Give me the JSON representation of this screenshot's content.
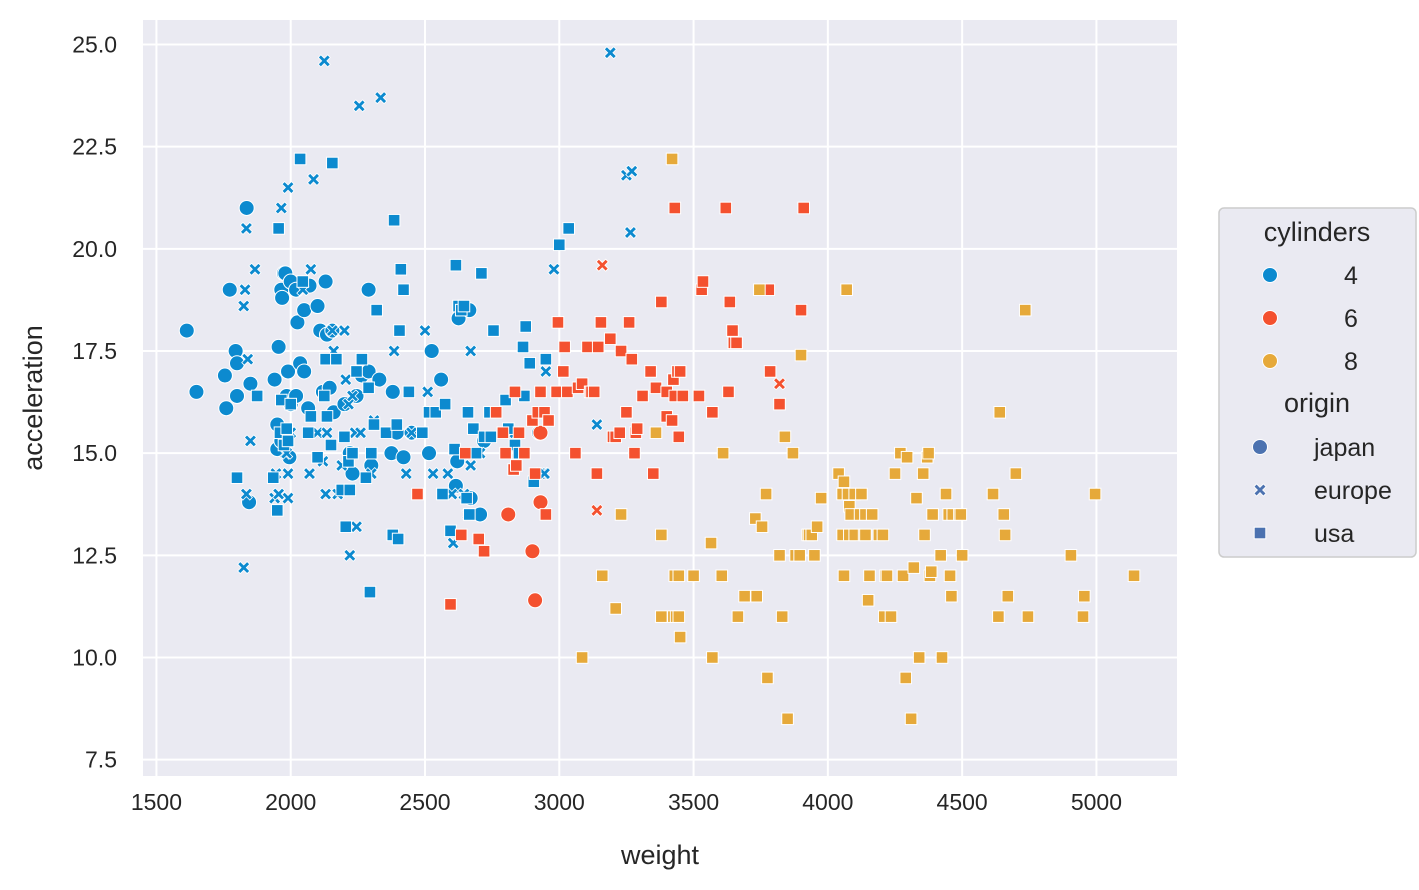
{
  "chart_data": {
    "type": "scatter",
    "xlabel": "weight",
    "ylabel": "acceleration",
    "xlim": [
      1450,
      5300
    ],
    "ylim": [
      7.1,
      25.6
    ],
    "xticks": [
      1500,
      2000,
      2500,
      3000,
      3500,
      4000,
      4500,
      5000
    ],
    "yticks": [
      7.5,
      10.0,
      12.5,
      15.0,
      17.5,
      20.0,
      22.5,
      25.0
    ],
    "xtick_labels": [
      "1500",
      "2000",
      "2500",
      "3000",
      "3500",
      "4000",
      "4500",
      "5000"
    ],
    "ytick_labels": [
      "7.5",
      "10.0",
      "12.5",
      "15.0",
      "17.5",
      "20.0",
      "22.5",
      "25.0"
    ],
    "grid": true,
    "background": "#EAEAF2",
    "legend_placement": "right",
    "color_legend": {
      "title": "cylinders",
      "entries": [
        {
          "label": "4",
          "color": "#0C8ACF"
        },
        {
          "label": "6",
          "color": "#F4512F"
        },
        {
          "label": "8",
          "color": "#E6A93A"
        }
      ]
    },
    "marker_legend": {
      "title": "origin",
      "color": "#4C72B0",
      "entries": [
        {
          "label": "japan",
          "marker": "circle"
        },
        {
          "label": "europe",
          "marker": "x"
        },
        {
          "label": "usa",
          "marker": "square"
        }
      ]
    },
    "series": [
      {
        "cylinders": "4",
        "origin": "japan",
        "marker": "circle",
        "color": "#0C8ACF",
        "x": [
          1613,
          1649,
          1755,
          1760,
          1773,
          1795,
          1800,
          1800,
          1836,
          1845,
          1850,
          1940,
          1950,
          1950,
          1955,
          1965,
          1965,
          1968,
          1975,
          1980,
          1985,
          1990,
          1995,
          2000,
          2000,
          2020,
          2020,
          2025,
          2035,
          2050,
          2050,
          2065,
          2070,
          2100,
          2110,
          2120,
          2130,
          2135,
          2145,
          2155,
          2160,
          2200,
          2220,
          2230,
          2245,
          2265,
          2290,
          2290,
          2300,
          2330,
          2375,
          2380,
          2395,
          2420,
          2450,
          2515,
          2525,
          2560,
          2615,
          2620,
          2625,
          2665,
          2670,
          2705,
          2720,
          2925
        ],
        "y": [
          18.0,
          16.5,
          16.9,
          16.1,
          19.0,
          17.5,
          17.2,
          16.4,
          21.0,
          13.8,
          16.7,
          16.8,
          15.7,
          15.1,
          17.6,
          19.0,
          15.3,
          18.8,
          19.4,
          19.4,
          16.4,
          17.0,
          14.9,
          16.2,
          19.2,
          19.0,
          16.4,
          18.2,
          17.2,
          18.5,
          17.0,
          16.1,
          19.1,
          18.6,
          18.0,
          16.5,
          19.2,
          17.9,
          16.6,
          18.0,
          16.0,
          16.2,
          15.0,
          14.5,
          16.4,
          16.9,
          19.0,
          17.0,
          14.7,
          16.8,
          15.0,
          16.5,
          15.5,
          14.9,
          15.5,
          15.0,
          17.5,
          16.8,
          14.2,
          14.8,
          18.3,
          18.5,
          13.9,
          13.5,
          15.3,
          15.5
        ]
      },
      {
        "cylinders": "4",
        "origin": "europe",
        "marker": "x",
        "color": "#0C8ACF",
        "x": [
          1825,
          1825,
          1830,
          1835,
          1835,
          1840,
          1850,
          1867,
          1940,
          1945,
          1955,
          1955,
          1965,
          1980,
          1985,
          1990,
          1990,
          1990,
          1995,
          2000,
          2045,
          2070,
          2075,
          2085,
          2100,
          2120,
          2125,
          2130,
          2135,
          2155,
          2160,
          2175,
          2190,
          2200,
          2205,
          2215,
          2220,
          2230,
          2240,
          2245,
          2255,
          2260,
          2300,
          2310,
          2335,
          2385,
          2430,
          2450,
          2500,
          2510,
          2530,
          2585,
          2600,
          2605,
          2645,
          2660,
          2670,
          2670,
          2705,
          2835,
          2930,
          2940,
          2945,
          2950,
          2980,
          3140,
          3190,
          3250,
          3265,
          3270
        ],
        "y": [
          12.2,
          18.6,
          19.0,
          20.5,
          14.0,
          17.3,
          15.3,
          19.5,
          13.9,
          14.5,
          14.0,
          14.0,
          21.0,
          15.0,
          15.0,
          13.9,
          21.5,
          14.5,
          15.5,
          15.5,
          19.0,
          14.5,
          19.5,
          21.7,
          15.5,
          14.8,
          24.6,
          14.0,
          15.5,
          18.0,
          17.5,
          14.0,
          14.7,
          18.0,
          16.8,
          16.2,
          12.5,
          16.4,
          15.5,
          13.2,
          23.5,
          15.5,
          14.5,
          15.8,
          23.7,
          17.5,
          14.5,
          15.5,
          18.0,
          16.5,
          14.5,
          14.5,
          14.0,
          12.8,
          14.0,
          13.5,
          14.7,
          17.5,
          15.0,
          15.5,
          14.5,
          14.5,
          14.5,
          17.0,
          19.5,
          15.7,
          24.8,
          21.8,
          20.4,
          21.9
        ]
      },
      {
        "cylinders": "4",
        "origin": "usa",
        "marker": "square",
        "color": "#0C8ACF",
        "x": [
          1800,
          1875,
          1935,
          1950,
          1955,
          1960,
          1965,
          1975,
          1985,
          1990,
          2000,
          2035,
          2045,
          2065,
          2075,
          2100,
          2125,
          2130,
          2135,
          2150,
          2155,
          2170,
          2190,
          2200,
          2205,
          2215,
          2220,
          2230,
          2245,
          2265,
          2280,
          2290,
          2295,
          2300,
          2310,
          2320,
          2355,
          2380,
          2385,
          2395,
          2400,
          2405,
          2410,
          2420,
          2440,
          2490,
          2515,
          2540,
          2565,
          2575,
          2595,
          2610,
          2615,
          2625,
          2635,
          2645,
          2655,
          2660,
          2665,
          2680,
          2690,
          2710,
          2720,
          2740,
          2745,
          2755,
          2800,
          2810,
          2835,
          2850,
          2865,
          2870,
          2875,
          2890,
          2905,
          2950,
          3000,
          3035
        ],
        "y": [
          14.4,
          16.4,
          14.4,
          13.6,
          20.5,
          15.5,
          16.3,
          15.2,
          15.6,
          15.3,
          16.2,
          22.2,
          19.2,
          15.5,
          15.9,
          14.9,
          16.4,
          17.3,
          15.9,
          15.2,
          22.1,
          17.3,
          14.1,
          15.4,
          13.2,
          14.8,
          14.1,
          15.0,
          17.0,
          17.3,
          14.4,
          16.6,
          11.6,
          15.0,
          15.7,
          18.5,
          15.5,
          13.0,
          20.7,
          15.7,
          12.9,
          18.0,
          19.5,
          19.0,
          16.5,
          15.5,
          16.0,
          16.0,
          14.0,
          16.2,
          13.1,
          15.1,
          19.6,
          18.6,
          18.5,
          18.6,
          13.9,
          16.0,
          13.5,
          15.6,
          15.0,
          19.4,
          15.4,
          16.0,
          15.4,
          18.0,
          16.3,
          15.6,
          15.2,
          15.0,
          17.6,
          16.4,
          18.1,
          17.2,
          14.3,
          17.3,
          20.1,
          20.5
        ]
      },
      {
        "cylinders": "6",
        "origin": "japan",
        "marker": "circle",
        "color": "#F4512F",
        "x": [
          2810,
          2900,
          2910,
          2930,
          2930
        ],
        "y": [
          13.5,
          12.6,
          11.4,
          13.8,
          15.5
        ]
      },
      {
        "cylinders": "6",
        "origin": "europe",
        "marker": "x",
        "color": "#F4512F",
        "x": [
          3140,
          3160,
          3160,
          3820
        ],
        "y": [
          13.6,
          19.6,
          19.6,
          16.7
        ]
      },
      {
        "cylinders": "6",
        "origin": "usa",
        "marker": "square",
        "color": "#F4512F",
        "x": [
          2472,
          2595,
          2635,
          2650,
          2700,
          2720,
          2765,
          2790,
          2800,
          2830,
          2835,
          2840,
          2850,
          2870,
          2900,
          2910,
          2920,
          2930,
          2945,
          2950,
          2960,
          2990,
          2995,
          3015,
          3020,
          3030,
          3060,
          3070,
          3085,
          3105,
          3115,
          3120,
          3130,
          3140,
          3145,
          3155,
          3190,
          3200,
          3210,
          3225,
          3230,
          3250,
          3260,
          3270,
          3280,
          3285,
          3290,
          3310,
          3340,
          3350,
          3360,
          3380,
          3400,
          3400,
          3420,
          3425,
          3430,
          3430,
          3440,
          3445,
          3450,
          3460,
          3520,
          3530,
          3535,
          3570,
          3620,
          3630,
          3635,
          3645,
          3650,
          3660,
          3780,
          3785,
          3820,
          3900,
          3910
        ],
        "y": [
          14.0,
          11.3,
          13.0,
          15.0,
          12.9,
          12.6,
          16.0,
          15.5,
          15.0,
          14.6,
          16.5,
          14.7,
          15.5,
          15.0,
          15.8,
          14.5,
          16.0,
          16.5,
          16.0,
          13.5,
          15.8,
          16.5,
          18.2,
          17.0,
          17.6,
          16.5,
          15.0,
          16.6,
          16.7,
          17.6,
          16.5,
          16.5,
          16.5,
          14.5,
          17.6,
          18.2,
          17.8,
          15.4,
          15.4,
          15.5,
          17.5,
          16.0,
          18.2,
          17.3,
          15.0,
          15.5,
          15.6,
          16.4,
          17.0,
          14.5,
          16.6,
          18.7,
          15.9,
          16.5,
          15.8,
          16.8,
          21.0,
          16.4,
          17.0,
          15.4,
          17.0,
          16.4,
          16.4,
          19.0,
          19.2,
          16.0,
          21.0,
          16.5,
          18.7,
          18.0,
          17.7,
          17.7,
          19.0,
          17.0,
          16.2,
          18.5,
          21.0
        ]
      },
      {
        "cylinders": "8",
        "origin": "usa",
        "marker": "square",
        "color": "#E6A93A",
        "x": [
          3085,
          3160,
          3210,
          3230,
          3360,
          3380,
          3380,
          3420,
          3425,
          3430,
          3435,
          3445,
          3445,
          3450,
          3500,
          3565,
          3570,
          3605,
          3610,
          3665,
          3690,
          3730,
          3735,
          3745,
          3755,
          3770,
          3775,
          3820,
          3830,
          3840,
          3850,
          3870,
          3880,
          3895,
          3900,
          3925,
          3930,
          3940,
          3950,
          3960,
          3975,
          4040,
          4055,
          4055,
          4060,
          4060,
          4070,
          4075,
          4080,
          4080,
          4085,
          4100,
          4100,
          4120,
          4125,
          4135,
          4140,
          4140,
          4150,
          4155,
          4165,
          4190,
          4205,
          4210,
          4215,
          4220,
          4235,
          4250,
          4270,
          4280,
          4290,
          4295,
          4310,
          4320,
          4330,
          4340,
          4355,
          4360,
          4370,
          4375,
          4380,
          4385,
          4390,
          4420,
          4425,
          4440,
          4450,
          4455,
          4460,
          4465,
          4490,
          4495,
          4500,
          4615,
          4635,
          4640,
          4655,
          4660,
          4670,
          4700,
          4735,
          4745,
          4905,
          4950,
          4955,
          4995,
          5140
        ],
        "y": [
          10.0,
          12.0,
          11.2,
          13.5,
          15.5,
          11.0,
          13.0,
          22.2,
          11.0,
          12.0,
          11.0,
          11.0,
          12.0,
          10.5,
          12.0,
          12.8,
          10.0,
          12.0,
          15.0,
          11.0,
          11.5,
          13.4,
          11.5,
          19.0,
          13.2,
          14.0,
          9.5,
          12.5,
          11.0,
          15.4,
          8.5,
          15.0,
          12.5,
          12.5,
          17.4,
          13.0,
          13.0,
          13.0,
          12.5,
          13.2,
          13.9,
          14.5,
          13.0,
          14.0,
          12.0,
          14.3,
          19.0,
          14.0,
          13.7,
          13.0,
          13.5,
          14.0,
          13.0,
          13.5,
          14.0,
          13.0,
          13.0,
          13.5,
          11.4,
          12.0,
          13.5,
          13.0,
          13.0,
          11.0,
          12.0,
          12.0,
          11.0,
          14.5,
          15.0,
          12.0,
          9.5,
          14.9,
          8.5,
          12.2,
          13.9,
          10.0,
          14.5,
          13.0,
          14.9,
          15.0,
          12.0,
          12.1,
          13.5,
          12.5,
          10.0,
          14.0,
          13.5,
          12.0,
          11.5,
          13.5,
          13.5,
          13.5,
          12.5,
          14.0,
          11.0,
          16.0,
          13.5,
          13.0,
          11.5,
          14.5,
          18.5,
          11.0,
          12.5,
          11.0,
          11.5,
          14.0,
          12.0
        ]
      }
    ]
  }
}
